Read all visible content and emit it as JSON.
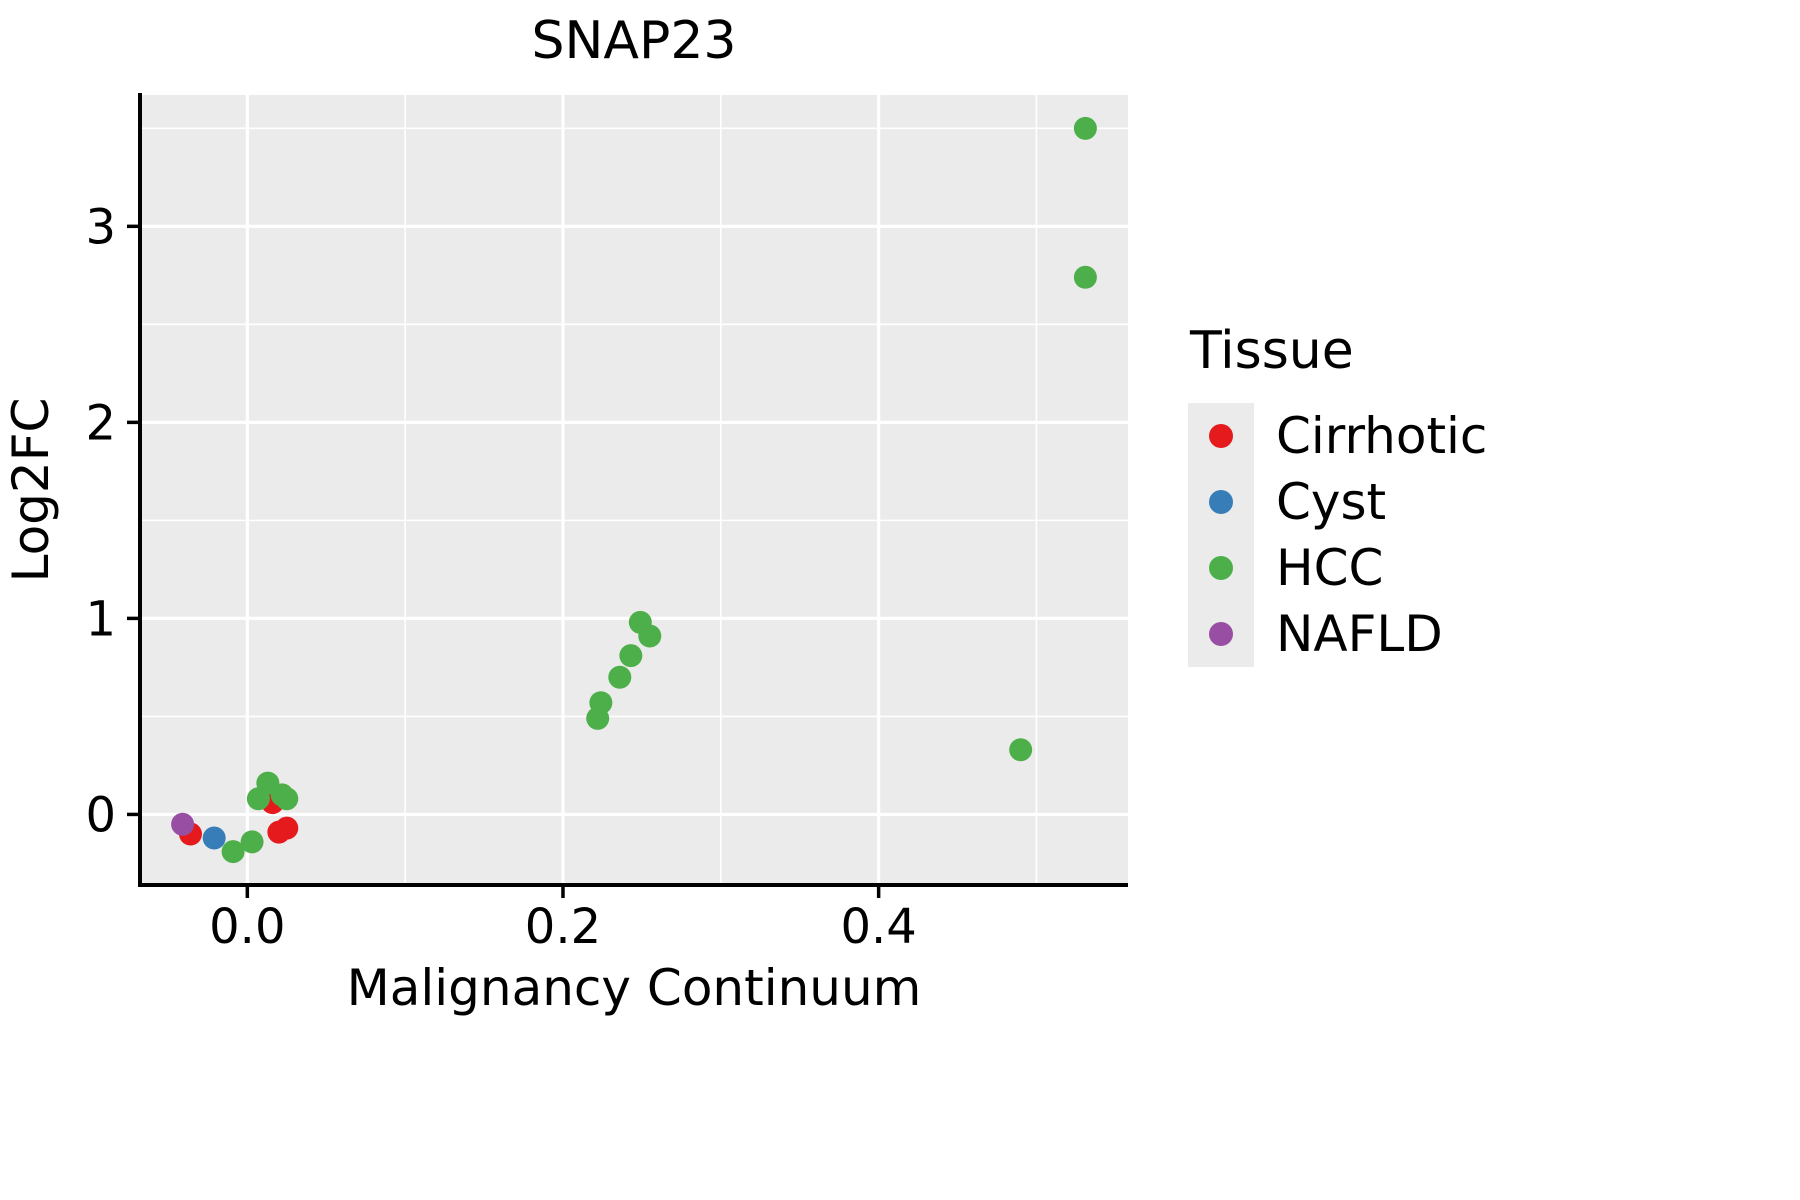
{
  "chart_data": {
    "type": "scatter",
    "title": "SNAP23",
    "xlabel": "Malignancy Continuum",
    "ylabel": "Log2FC",
    "xlim": [
      -0.068,
      0.558
    ],
    "ylim": [
      -0.36,
      3.67
    ],
    "xticks": [
      0.0,
      0.2,
      0.4
    ],
    "xtick_labels": [
      "0.0",
      "0.2",
      "0.4"
    ],
    "xticks_minor": [
      0.1,
      0.3,
      0.5
    ],
    "yticks": [
      0,
      1,
      2,
      3
    ],
    "ytick_labels": [
      "0",
      "1",
      "2",
      "3"
    ],
    "yticks_minor": [
      0.5,
      1.5,
      2.5,
      3.5
    ],
    "grid": "on",
    "panel_background": "#EBEBEB",
    "gridline_color": "#FFFFFF",
    "legend": {
      "title": "Tissue",
      "position": "right",
      "key_background": "#EBEBEB"
    },
    "series": [
      {
        "name": "Cirrhotic",
        "color": "#E41A1C",
        "points": [
          [
            -0.036,
            -0.1
          ],
          [
            0.016,
            0.06
          ],
          [
            0.02,
            -0.09
          ],
          [
            0.025,
            -0.07
          ]
        ]
      },
      {
        "name": "Cyst",
        "color": "#377EB8",
        "points": [
          [
            -0.021,
            -0.12
          ]
        ]
      },
      {
        "name": "HCC",
        "color": "#4DAF4A",
        "points": [
          [
            -0.009,
            -0.19
          ],
          [
            0.003,
            -0.14
          ],
          [
            0.007,
            0.08
          ],
          [
            0.013,
            0.16
          ],
          [
            0.022,
            0.1
          ],
          [
            0.025,
            0.08
          ],
          [
            0.222,
            0.49
          ],
          [
            0.224,
            0.57
          ],
          [
            0.236,
            0.7
          ],
          [
            0.243,
            0.81
          ],
          [
            0.249,
            0.98
          ],
          [
            0.255,
            0.91
          ],
          [
            0.49,
            0.33
          ],
          [
            0.531,
            2.74
          ],
          [
            0.531,
            3.5
          ]
        ]
      },
      {
        "name": "NAFLD",
        "color": "#984EA3",
        "points": [
          [
            -0.041,
            -0.05
          ]
        ]
      }
    ]
  }
}
